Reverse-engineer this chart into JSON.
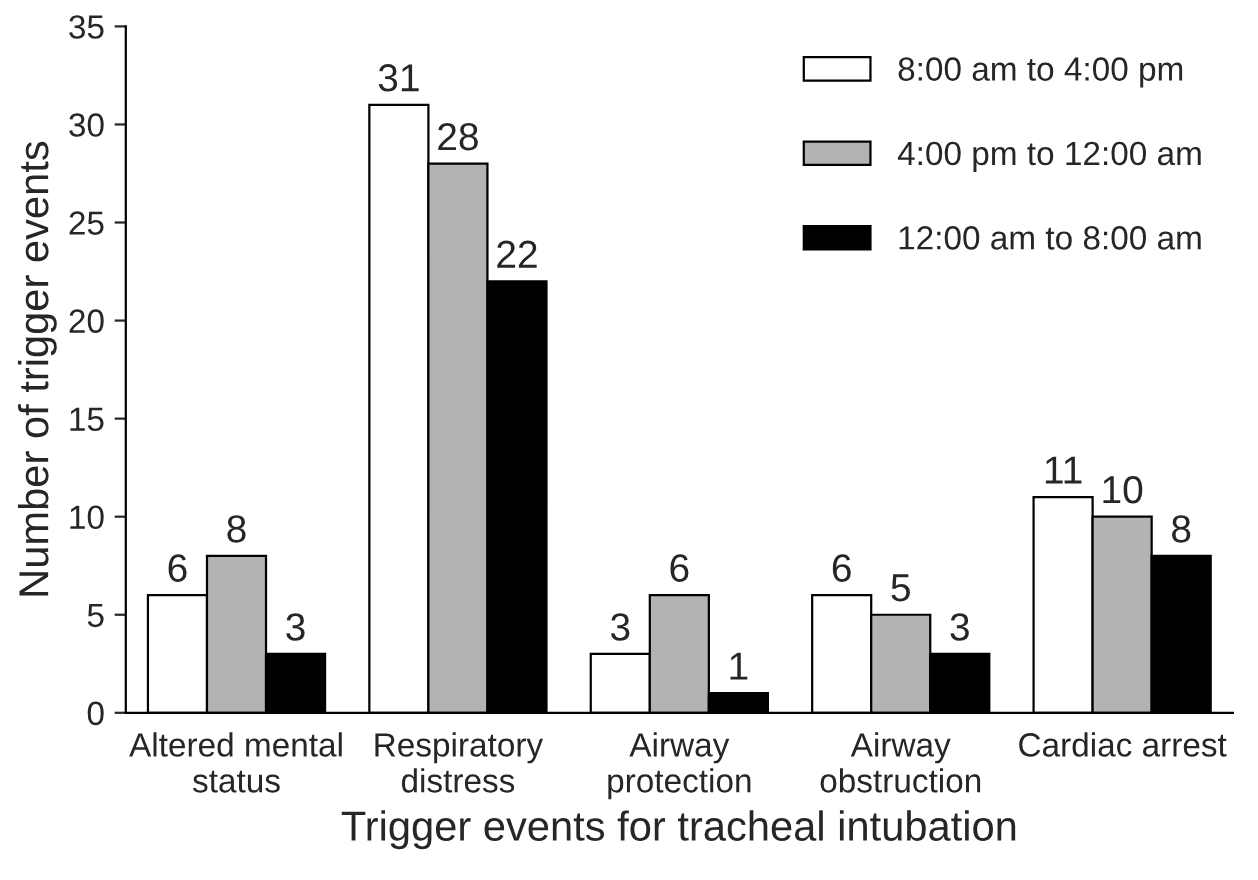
{
  "chart_data": {
    "type": "bar",
    "xlabel": "Trigger events for tracheal intubation",
    "ylabel": "Number of trigger events",
    "categories": [
      "Altered mental\nstatus",
      "Respiratory\ndistress",
      "Airway\nprotection",
      "Airway\nobstruction",
      "Cardiac arrest"
    ],
    "series": [
      {
        "name": "8:00 am to 4:00 pm",
        "color": "#ffffff",
        "values": [
          6,
          31,
          3,
          6,
          11
        ]
      },
      {
        "name": "4:00 pm to 12:00 am",
        "color": "#b3b3b3",
        "values": [
          8,
          28,
          6,
          5,
          10
        ]
      },
      {
        "name": "12:00 am to 8:00 am",
        "color": "#000000",
        "values": [
          3,
          22,
          1,
          3,
          8
        ]
      }
    ],
    "ylim": [
      0,
      35
    ],
    "yticks": [
      0,
      5,
      10,
      15,
      20,
      25,
      30,
      35
    ],
    "grid": false,
    "legend": "top right",
    "data_labels": true
  }
}
